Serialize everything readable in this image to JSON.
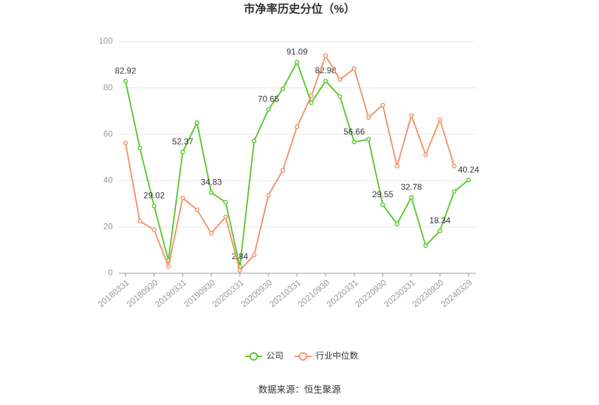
{
  "chart_data": {
    "type": "line",
    "title": "市净率历史分位（%）",
    "categories": [
      "20180331",
      null,
      "20180930",
      null,
      "20190331",
      null,
      "20190930",
      null,
      "20200331",
      null,
      "20200930",
      null,
      "20210331",
      null,
      "20210930",
      null,
      "20220331",
      null,
      "20220930",
      null,
      "20230331",
      null,
      "20230930",
      null,
      "20240329"
    ],
    "series": [
      {
        "name": "公司",
        "color": "#5cc82f",
        "values": [
          82.92,
          54.1,
          29.02,
          5.5,
          52.37,
          65,
          34.83,
          30.7,
          2.84,
          57.1,
          70.65,
          79.6,
          91.09,
          73.6,
          82.98,
          76.3,
          56.66,
          57.8,
          29.55,
          21.3,
          32.78,
          11.9,
          18.34,
          35.3,
          40.24
        ],
        "value_labels": [
          "82.92",
          null,
          "29.02",
          null,
          "52.37",
          null,
          "34.83",
          null,
          "2.84",
          null,
          "70.65",
          null,
          "91.09",
          null,
          "82.98",
          null,
          "56.66",
          null,
          "29.55",
          null,
          "32.78",
          null,
          "18.34",
          null,
          "40.24"
        ]
      },
      {
        "name": "行业中位数",
        "color": "#f4936a",
        "values": [
          56.2,
          22.5,
          18.8,
          3,
          32.5,
          27.4,
          17.3,
          24.3,
          1.2,
          7.9,
          33.7,
          44.4,
          63.2,
          76.6,
          93.9,
          83.6,
          88.4,
          67.2,
          72.6,
          46.2,
          68.1,
          51.1,
          66.3,
          46.2,
          null
        ]
      }
    ],
    "ylim": [
      0,
      100
    ],
    "yticks": [
      0,
      20,
      40,
      60,
      80,
      100
    ],
    "grid": true,
    "legend": "bottom",
    "source": "数据来源：恒生聚源"
  }
}
